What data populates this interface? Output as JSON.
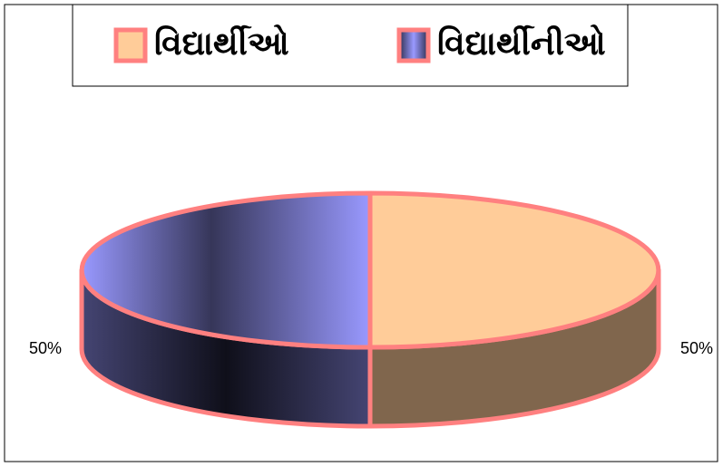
{
  "chart_data": {
    "type": "pie",
    "categories": [
      "વિદ્યાર્થીઓ",
      "વિદ્યાર્થીનીઓ"
    ],
    "values": [
      50,
      50
    ],
    "value_labels": [
      "50%",
      "50%"
    ],
    "colors": [
      "#ffcc99",
      "#9999ff"
    ],
    "edge_color": "#ff8080",
    "three_d": true,
    "legend": "top"
  }
}
